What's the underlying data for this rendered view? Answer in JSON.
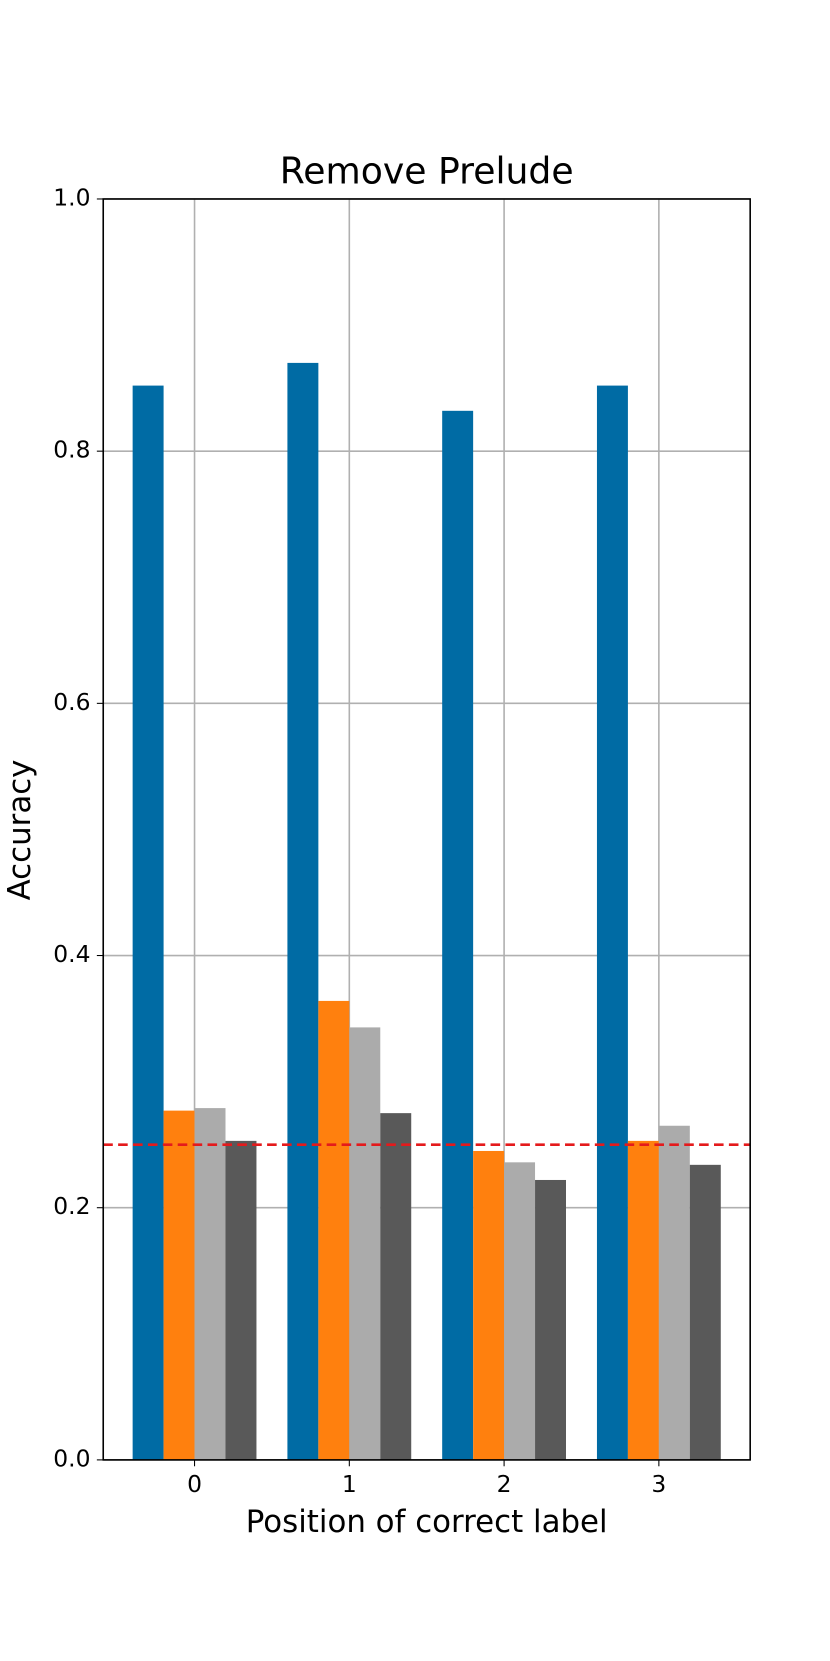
{
  "chart_data": {
    "type": "bar",
    "title": "Remove Prelude",
    "xlabel": "Position of correct label",
    "ylabel": "Accuracy",
    "x": [
      0,
      1,
      2,
      3
    ],
    "series": [
      {
        "color": "#006ba4",
        "values": [
          0.852,
          0.87,
          0.832,
          0.852
        ]
      },
      {
        "color": "#ff800e",
        "values": [
          0.277,
          0.364,
          0.245,
          0.253
        ]
      },
      {
        "color": "#ababab",
        "values": [
          0.279,
          0.343,
          0.236,
          0.265
        ]
      },
      {
        "color": "#595959",
        "values": [
          0.253,
          0.275,
          0.222,
          0.234
        ]
      }
    ],
    "xlim": [
      -0.59,
      3.59
    ],
    "xticks": [
      0,
      1,
      2,
      3
    ],
    "ylim": [
      0,
      1
    ],
    "yticks": [
      {
        "value": 0,
        "label": "0.0"
      },
      {
        "value": 0.2,
        "label": "0.2"
      },
      {
        "value": 0.4,
        "label": "0.4"
      },
      {
        "value": 0.6,
        "label": "0.6"
      },
      {
        "value": 0.8,
        "label": "0.8"
      },
      {
        "value": 1,
        "label": "1.0"
      }
    ],
    "grid": true,
    "hline": {
      "value": 0.25,
      "color": "#e41a1c"
    }
  }
}
